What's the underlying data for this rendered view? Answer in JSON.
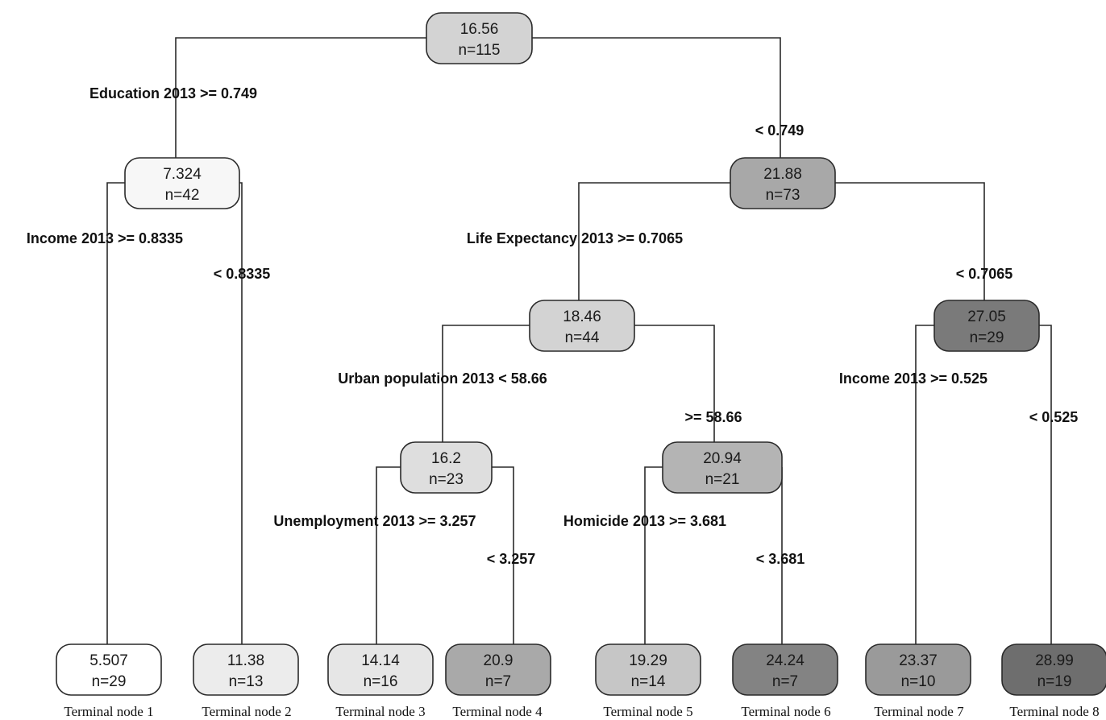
{
  "tree": {
    "nodes": [
      {
        "id": "root",
        "value": "16.56",
        "count": "n=115",
        "fill": "#d3d3d3"
      },
      {
        "id": "n1",
        "value": "7.324",
        "count": "n=42",
        "fill": "#f7f7f7"
      },
      {
        "id": "n2",
        "value": "21.88",
        "count": "n=73",
        "fill": "#a8a8a8"
      },
      {
        "id": "n3",
        "value": "18.46",
        "count": "n=44",
        "fill": "#d3d3d3"
      },
      {
        "id": "n4",
        "value": "27.05",
        "count": "n=29",
        "fill": "#7a7a7a"
      },
      {
        "id": "n5",
        "value": "16.2",
        "count": "n=23",
        "fill": "#dedede"
      },
      {
        "id": "n6",
        "value": "20.94",
        "count": "n=21",
        "fill": "#b4b4b4"
      },
      {
        "id": "t1",
        "value": "5.507",
        "count": "n=29",
        "fill": "#ffffff"
      },
      {
        "id": "t2",
        "value": "11.38",
        "count": "n=13",
        "fill": "#ececec"
      },
      {
        "id": "t3",
        "value": "14.14",
        "count": "n=16",
        "fill": "#e6e6e6"
      },
      {
        "id": "t4",
        "value": "20.9",
        "count": "n=7",
        "fill": "#a9a9a9"
      },
      {
        "id": "t5",
        "value": "19.29",
        "count": "n=14",
        "fill": "#c6c6c6"
      },
      {
        "id": "t6",
        "value": "24.24",
        "count": "n=7",
        "fill": "#838383"
      },
      {
        "id": "t7",
        "value": "23.37",
        "count": "n=10",
        "fill": "#9a9a9a"
      },
      {
        "id": "t8",
        "value": "28.99",
        "count": "n=19",
        "fill": "#6e6e6e"
      }
    ],
    "splits": [
      {
        "id": "s-root-left",
        "text": "Education 2013 >= 0.749"
      },
      {
        "id": "s-root-right",
        "text": "< 0.749"
      },
      {
        "id": "s-n1-left",
        "text": "Income 2013 >= 0.8335"
      },
      {
        "id": "s-n1-right",
        "text": "< 0.8335"
      },
      {
        "id": "s-n2-left",
        "text": "Life Expectancy 2013  >= 0.7065"
      },
      {
        "id": "s-n2-right",
        "text": "< 0.7065"
      },
      {
        "id": "s-n3-left",
        "text": "Urban population 2013 < 58.66"
      },
      {
        "id": "s-n3-right",
        "text": ">= 58.66"
      },
      {
        "id": "s-n4-left",
        "text": "Income 2013 >= 0.525"
      },
      {
        "id": "s-n4-right",
        "text": "< 0.525"
      },
      {
        "id": "s-n5-left",
        "text": "Unemployment 2013  >= 3.257"
      },
      {
        "id": "s-n5-right",
        "text": "< 3.257"
      },
      {
        "id": "s-n6-left",
        "text": "Homicide 2013 >= 3.681"
      },
      {
        "id": "s-n6-right",
        "text": "< 3.681"
      }
    ],
    "terminal_labels": [
      "Terminal node 1",
      "Terminal node 2",
      "Terminal node 3",
      "Terminal node 4",
      "Terminal node 5",
      "Terminal node 6",
      "Terminal node 7",
      "Terminal node 8"
    ]
  }
}
